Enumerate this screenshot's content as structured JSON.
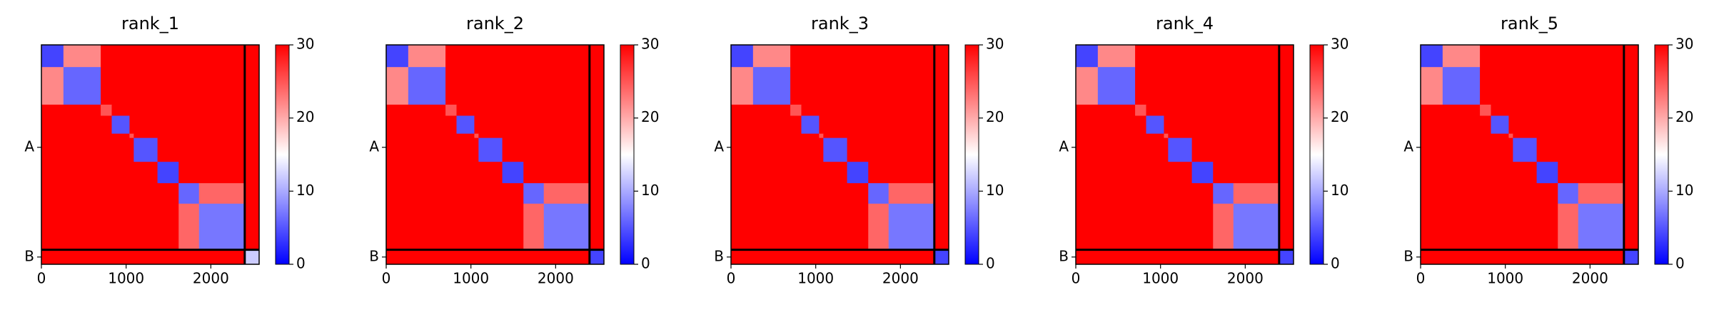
{
  "chart_data": [
    {
      "type": "heatmap",
      "title": "rank_1",
      "bins": [
        0,
        260,
        700,
        830,
        1040,
        1090,
        1370,
        1620,
        1860,
        2400,
        2570
      ],
      "values": [
        [
          4,
          22,
          30,
          30,
          30,
          30,
          30,
          30,
          30,
          30
        ],
        [
          22,
          6,
          30,
          30,
          30,
          30,
          30,
          30,
          30,
          30
        ],
        [
          30,
          30,
          25,
          30,
          30,
          30,
          30,
          30,
          30,
          30
        ],
        [
          30,
          30,
          30,
          5,
          30,
          30,
          30,
          30,
          30,
          30
        ],
        [
          30,
          30,
          30,
          30,
          25,
          30,
          30,
          30,
          30,
          30
        ],
        [
          30,
          30,
          30,
          30,
          30,
          5,
          30,
          30,
          30,
          30
        ],
        [
          30,
          30,
          30,
          30,
          30,
          30,
          4,
          30,
          30,
          30
        ],
        [
          30,
          30,
          30,
          30,
          30,
          30,
          30,
          6,
          24,
          30
        ],
        [
          30,
          30,
          30,
          30,
          30,
          30,
          30,
          24,
          7,
          30
        ],
        [
          30,
          30,
          30,
          30,
          30,
          30,
          30,
          30,
          30,
          12
        ]
      ],
      "xlim": [
        0,
        2570
      ],
      "ylim": [
        2570,
        0
      ],
      "xticks": [
        0,
        1000,
        2000
      ],
      "yticks": [
        {
          "value": 1200,
          "label": "A"
        },
        {
          "value": 2485,
          "label": "B"
        }
      ],
      "boundaries": [
        2400
      ],
      "clim": [
        0,
        30
      ],
      "cticks": [
        0,
        10,
        20,
        30
      ],
      "colormap": [
        "#0000ff",
        "#ffffff",
        "#ff0000"
      ]
    },
    {
      "type": "heatmap",
      "title": "rank_2",
      "bins": [
        0,
        260,
        700,
        830,
        1040,
        1090,
        1370,
        1620,
        1860,
        2400,
        2570
      ],
      "values": [
        [
          4,
          22,
          30,
          30,
          30,
          30,
          30,
          30,
          30,
          30
        ],
        [
          22,
          6,
          30,
          30,
          30,
          30,
          30,
          30,
          30,
          30
        ],
        [
          30,
          30,
          25,
          30,
          30,
          30,
          30,
          30,
          30,
          30
        ],
        [
          30,
          30,
          30,
          5,
          30,
          30,
          30,
          30,
          30,
          30
        ],
        [
          30,
          30,
          30,
          30,
          25,
          30,
          30,
          30,
          30,
          30
        ],
        [
          30,
          30,
          30,
          30,
          30,
          5,
          30,
          30,
          30,
          30
        ],
        [
          30,
          30,
          30,
          30,
          30,
          30,
          4,
          30,
          30,
          30
        ],
        [
          30,
          30,
          30,
          30,
          30,
          30,
          30,
          6,
          24,
          30
        ],
        [
          30,
          30,
          30,
          30,
          30,
          30,
          30,
          24,
          7,
          30
        ],
        [
          30,
          30,
          30,
          30,
          30,
          30,
          30,
          30,
          30,
          4
        ]
      ],
      "xlim": [
        0,
        2570
      ],
      "ylim": [
        2570,
        0
      ],
      "xticks": [
        0,
        1000,
        2000
      ],
      "yticks": [
        {
          "value": 1200,
          "label": "A"
        },
        {
          "value": 2485,
          "label": "B"
        }
      ],
      "boundaries": [
        2400
      ],
      "clim": [
        0,
        30
      ],
      "cticks": [
        0,
        10,
        20,
        30
      ],
      "colormap": [
        "#0000ff",
        "#ffffff",
        "#ff0000"
      ]
    },
    {
      "type": "heatmap",
      "title": "rank_3",
      "bins": [
        0,
        260,
        700,
        830,
        1040,
        1090,
        1370,
        1620,
        1860,
        2400,
        2570
      ],
      "values": [
        [
          4,
          22,
          30,
          30,
          30,
          30,
          30,
          30,
          30,
          30
        ],
        [
          22,
          6,
          30,
          30,
          30,
          30,
          30,
          30,
          30,
          30
        ],
        [
          30,
          30,
          25,
          30,
          30,
          30,
          30,
          30,
          30,
          30
        ],
        [
          30,
          30,
          30,
          5,
          30,
          30,
          30,
          30,
          30,
          30
        ],
        [
          30,
          30,
          30,
          30,
          25,
          30,
          30,
          30,
          30,
          30
        ],
        [
          30,
          30,
          30,
          30,
          30,
          5,
          30,
          30,
          30,
          30
        ],
        [
          30,
          30,
          30,
          30,
          30,
          30,
          4,
          30,
          30,
          30
        ],
        [
          30,
          30,
          30,
          30,
          30,
          30,
          30,
          6,
          24,
          30
        ],
        [
          30,
          30,
          30,
          30,
          30,
          30,
          30,
          24,
          7,
          30
        ],
        [
          30,
          30,
          30,
          30,
          30,
          30,
          30,
          30,
          30,
          4
        ]
      ],
      "xlim": [
        0,
        2570
      ],
      "ylim": [
        2570,
        0
      ],
      "xticks": [
        0,
        1000,
        2000
      ],
      "yticks": [
        {
          "value": 1200,
          "label": "A"
        },
        {
          "value": 2485,
          "label": "B"
        }
      ],
      "boundaries": [
        2400
      ],
      "clim": [
        0,
        30
      ],
      "cticks": [
        0,
        10,
        20,
        30
      ],
      "colormap": [
        "#0000ff",
        "#ffffff",
        "#ff0000"
      ]
    },
    {
      "type": "heatmap",
      "title": "rank_4",
      "bins": [
        0,
        260,
        700,
        830,
        1040,
        1090,
        1370,
        1620,
        1860,
        2400,
        2570
      ],
      "values": [
        [
          4,
          22,
          30,
          30,
          30,
          30,
          30,
          30,
          30,
          30
        ],
        [
          22,
          6,
          30,
          30,
          30,
          30,
          30,
          30,
          30,
          30
        ],
        [
          30,
          30,
          25,
          30,
          30,
          30,
          30,
          30,
          30,
          30
        ],
        [
          30,
          30,
          30,
          5,
          30,
          30,
          30,
          30,
          30,
          30
        ],
        [
          30,
          30,
          30,
          30,
          25,
          30,
          30,
          30,
          30,
          30
        ],
        [
          30,
          30,
          30,
          30,
          30,
          5,
          30,
          30,
          30,
          30
        ],
        [
          30,
          30,
          30,
          30,
          30,
          30,
          4,
          30,
          30,
          30
        ],
        [
          30,
          30,
          30,
          30,
          30,
          30,
          30,
          6,
          24,
          30
        ],
        [
          30,
          30,
          30,
          30,
          30,
          30,
          30,
          24,
          7,
          30
        ],
        [
          30,
          30,
          30,
          30,
          30,
          30,
          30,
          30,
          30,
          4
        ]
      ],
      "xlim": [
        0,
        2570
      ],
      "ylim": [
        2570,
        0
      ],
      "xticks": [
        0,
        1000,
        2000
      ],
      "yticks": [
        {
          "value": 1200,
          "label": "A"
        },
        {
          "value": 2485,
          "label": "B"
        }
      ],
      "boundaries": [
        2400
      ],
      "clim": [
        0,
        30
      ],
      "cticks": [
        0,
        10,
        20,
        30
      ],
      "colormap": [
        "#0000ff",
        "#ffffff",
        "#ff0000"
      ]
    },
    {
      "type": "heatmap",
      "title": "rank_5",
      "bins": [
        0,
        260,
        700,
        830,
        1040,
        1090,
        1370,
        1620,
        1860,
        2400,
        2570
      ],
      "values": [
        [
          4,
          22,
          30,
          30,
          30,
          30,
          30,
          30,
          30,
          30
        ],
        [
          22,
          6,
          30,
          30,
          30,
          30,
          30,
          30,
          30,
          30
        ],
        [
          30,
          30,
          25,
          30,
          30,
          30,
          30,
          30,
          30,
          30
        ],
        [
          30,
          30,
          30,
          5,
          30,
          30,
          30,
          30,
          30,
          30
        ],
        [
          30,
          30,
          30,
          30,
          25,
          30,
          30,
          30,
          30,
          30
        ],
        [
          30,
          30,
          30,
          30,
          30,
          5,
          30,
          30,
          30,
          30
        ],
        [
          30,
          30,
          30,
          30,
          30,
          30,
          4,
          30,
          30,
          30
        ],
        [
          30,
          30,
          30,
          30,
          30,
          30,
          30,
          6,
          24,
          30
        ],
        [
          30,
          30,
          30,
          30,
          30,
          30,
          30,
          24,
          7,
          30
        ],
        [
          30,
          30,
          30,
          30,
          30,
          30,
          30,
          30,
          30,
          4
        ]
      ],
      "xlim": [
        0,
        2570
      ],
      "ylim": [
        2570,
        0
      ],
      "xticks": [
        0,
        1000,
        2000
      ],
      "yticks": [
        {
          "value": 1200,
          "label": "A"
        },
        {
          "value": 2485,
          "label": "B"
        }
      ],
      "boundaries": [
        2400
      ],
      "clim": [
        0,
        30
      ],
      "cticks": [
        0,
        10,
        20,
        30
      ],
      "colormap": [
        "#0000ff",
        "#ffffff",
        "#ff0000"
      ]
    }
  ]
}
